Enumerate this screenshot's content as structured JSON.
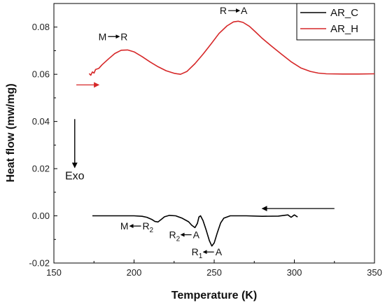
{
  "chart_data": {
    "type": "line",
    "xlabel": "Temperature (K)",
    "ylabel": "Heat flow (mw/mg)",
    "xlim": [
      150,
      350
    ],
    "ylim": [
      -0.02,
      0.09
    ],
    "x_ticks": [
      150,
      200,
      250,
      300,
      350
    ],
    "y_ticks": [
      -0.02,
      0.0,
      0.02,
      0.04,
      0.06,
      0.08
    ],
    "x_tick_labels": [
      "150",
      "200",
      "250",
      "300",
      "350"
    ],
    "y_tick_labels": [
      "-0.02",
      "0.00",
      "0.02",
      "0.04",
      "0.06",
      "0.08"
    ],
    "grid": false,
    "legend_position": "top-right",
    "series": [
      {
        "name": "AR_C",
        "color": "#000000",
        "points": [
          [
            174,
            0.0
          ],
          [
            180,
            0.0
          ],
          [
            190,
            0.0
          ],
          [
            200,
            0.0
          ],
          [
            205,
            -0.0002
          ],
          [
            208,
            -0.0006
          ],
          [
            211,
            -0.0015
          ],
          [
            213,
            -0.0024
          ],
          [
            215,
            -0.0026
          ],
          [
            217,
            -0.0015
          ],
          [
            219,
            -0.0004
          ],
          [
            222,
            0.0002
          ],
          [
            226,
            0.0
          ],
          [
            230,
            -0.001
          ],
          [
            234,
            -0.0025
          ],
          [
            236,
            -0.004
          ],
          [
            238,
            -0.005
          ],
          [
            239.5,
            -0.0032
          ],
          [
            240.5,
            -0.0005
          ],
          [
            241.5,
            0.0
          ],
          [
            243,
            -0.002
          ],
          [
            245,
            -0.006
          ],
          [
            247,
            -0.0105
          ],
          [
            248.5,
            -0.0128
          ],
          [
            250,
            -0.0115
          ],
          [
            252,
            -0.007
          ],
          [
            254,
            -0.003
          ],
          [
            256,
            -0.001
          ],
          [
            260,
            0.0
          ],
          [
            270,
            0.0
          ],
          [
            280,
            -0.0002
          ],
          [
            290,
            -0.0001
          ],
          [
            296,
            0.0004
          ],
          [
            298,
            -0.0006
          ],
          [
            300,
            0.0004
          ],
          [
            302,
            -0.0005
          ]
        ]
      },
      {
        "name": "AR_H",
        "color": "#d62728",
        "points": [
          [
            172,
            0.0603
          ],
          [
            173,
            0.0596
          ],
          [
            174,
            0.061
          ],
          [
            175,
            0.0605
          ],
          [
            176,
            0.062
          ],
          [
            178,
            0.0625
          ],
          [
            180,
            0.064
          ],
          [
            184,
            0.0665
          ],
          [
            188,
            0.0688
          ],
          [
            192,
            0.0702
          ],
          [
            196,
            0.0703
          ],
          [
            200,
            0.0695
          ],
          [
            205,
            0.0675
          ],
          [
            210,
            0.0652
          ],
          [
            215,
            0.0632
          ],
          [
            220,
            0.0615
          ],
          [
            225,
            0.0604
          ],
          [
            229,
            0.06
          ],
          [
            233,
            0.0612
          ],
          [
            238,
            0.0645
          ],
          [
            243,
            0.0685
          ],
          [
            248,
            0.0728
          ],
          [
            253,
            0.0773
          ],
          [
            258,
            0.0805
          ],
          [
            262,
            0.0822
          ],
          [
            265,
            0.0825
          ],
          [
            268,
            0.082
          ],
          [
            272,
            0.0803
          ],
          [
            276,
            0.0778
          ],
          [
            280,
            0.0752
          ],
          [
            286,
            0.0718
          ],
          [
            292,
            0.0685
          ],
          [
            298,
            0.0653
          ],
          [
            304,
            0.0627
          ],
          [
            310,
            0.0612
          ],
          [
            315,
            0.0605
          ],
          [
            320,
            0.0602
          ],
          [
            330,
            0.0601
          ],
          [
            340,
            0.0601
          ],
          [
            350,
            0.0602
          ]
        ]
      }
    ],
    "annotations": {
      "m_r": {
        "left": "M",
        "right": "R",
        "x": 189,
        "y": 0.0745
      },
      "r_a": {
        "left": "R",
        "right": "A",
        "x": 264,
        "y": 0.0855
      },
      "m_r2": {
        "left": "M",
        "right": "R",
        "sub": "2",
        "x": 207,
        "y": -0.0058
      },
      "r2_a": {
        "left": "R",
        "sub": "2",
        "right": "A",
        "x": 235,
        "y": -0.0095
      },
      "r1_a": {
        "left": "R",
        "sub": "1",
        "right": "A",
        "x": 249,
        "y": -0.0168
      },
      "exo": {
        "text": "Exo"
      }
    },
    "arrows": {
      "heating": {
        "from": [
          164,
          0.0555
        ],
        "to": [
          178,
          0.0555
        ],
        "color": "#d62728"
      },
      "cooling": {
        "from": [
          325,
          0.0031
        ],
        "to": [
          280,
          0.0031
        ],
        "color": "#000000"
      },
      "exo_arrow": {
        "from": [
          163,
          0.041
        ],
        "to": [
          163,
          0.0205
        ],
        "color": "#000000"
      }
    }
  }
}
